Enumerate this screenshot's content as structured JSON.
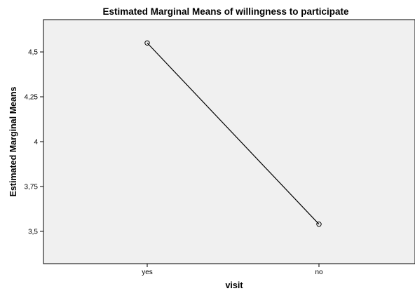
{
  "chart_data": {
    "type": "line",
    "title": "Estimated Marginal Means of willingness to participate",
    "xlabel": "visit",
    "ylabel": "Estimated Marginal Means",
    "categories": [
      "yes",
      "no"
    ],
    "series": [
      {
        "values": [
          4.55,
          3.54
        ]
      }
    ],
    "y_ticks": [
      3.5,
      3.75,
      4,
      4.25,
      4.5
    ],
    "y_tick_labels": [
      "3,5",
      "3,75",
      "4",
      "4,25",
      "4,5"
    ],
    "ylim": [
      3.32,
      4.68
    ],
    "grid": false,
    "legend": "none",
    "plot_background": "#f0f0f0",
    "line_color": "#000000"
  }
}
